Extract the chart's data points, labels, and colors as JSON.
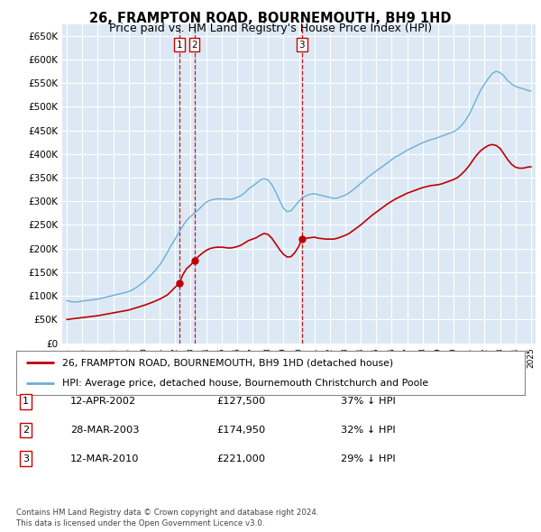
{
  "title": "26, FRAMPTON ROAD, BOURNEMOUTH, BH9 1HD",
  "subtitle": "Price paid vs. HM Land Registry's House Price Index (HPI)",
  "ytick_values": [
    0,
    50000,
    100000,
    150000,
    200000,
    250000,
    300000,
    350000,
    400000,
    450000,
    500000,
    550000,
    600000,
    650000
  ],
  "ylim": [
    0,
    675000
  ],
  "xlim_start": 1994.7,
  "xlim_end": 2025.3,
  "background_color": "#dce9f5",
  "grid_color": "#ffffff",
  "hpi_line_color": "#6baed6",
  "price_line_color": "#c00000",
  "sale_marker_color": "#c00000",
  "transactions": [
    {
      "date_num": 2002.28,
      "price": 127500,
      "label": "1"
    },
    {
      "date_num": 2003.24,
      "price": 174950,
      "label": "2"
    },
    {
      "date_num": 2010.19,
      "price": 221000,
      "label": "3"
    }
  ],
  "transaction_table": [
    {
      "num": "1",
      "date": "12-APR-2002",
      "price": "£127,500",
      "change": "37% ↓ HPI"
    },
    {
      "num": "2",
      "date": "28-MAR-2003",
      "price": "£174,950",
      "change": "32% ↓ HPI"
    },
    {
      "num": "3",
      "date": "12-MAR-2010",
      "price": "£221,000",
      "change": "29% ↓ HPI"
    }
  ],
  "legend_entries": [
    "26, FRAMPTON ROAD, BOURNEMOUTH, BH9 1HD (detached house)",
    "HPI: Average price, detached house, Bournemouth Christchurch and Poole"
  ],
  "footer": "Contains HM Land Registry data © Crown copyright and database right 2024.\nThis data is licensed under the Open Government Licence v3.0.",
  "title_fontsize": 10.5,
  "subtitle_fontsize": 9,
  "hpi_data": [
    [
      1995.0,
      90000
    ],
    [
      1995.25,
      88000
    ],
    [
      1995.5,
      87000
    ],
    [
      1995.75,
      87500
    ],
    [
      1996.0,
      89000
    ],
    [
      1996.25,
      90000
    ],
    [
      1996.5,
      91000
    ],
    [
      1996.75,
      92000
    ],
    [
      1997.0,
      93000
    ],
    [
      1997.25,
      95000
    ],
    [
      1997.5,
      97000
    ],
    [
      1997.75,
      99000
    ],
    [
      1998.0,
      101000
    ],
    [
      1998.25,
      103000
    ],
    [
      1998.5,
      105000
    ],
    [
      1998.75,
      107000
    ],
    [
      1999.0,
      109000
    ],
    [
      1999.25,
      113000
    ],
    [
      1999.5,
      118000
    ],
    [
      1999.75,
      124000
    ],
    [
      2000.0,
      130000
    ],
    [
      2000.25,
      138000
    ],
    [
      2000.5,
      146000
    ],
    [
      2000.75,
      155000
    ],
    [
      2001.0,
      165000
    ],
    [
      2001.25,
      178000
    ],
    [
      2001.5,
      192000
    ],
    [
      2001.75,
      207000
    ],
    [
      2002.0,
      220000
    ],
    [
      2002.25,
      235000
    ],
    [
      2002.5,
      248000
    ],
    [
      2002.75,
      260000
    ],
    [
      2003.0,
      268000
    ],
    [
      2003.25,
      275000
    ],
    [
      2003.5,
      282000
    ],
    [
      2003.75,
      290000
    ],
    [
      2004.0,
      298000
    ],
    [
      2004.25,
      302000
    ],
    [
      2004.5,
      304000
    ],
    [
      2004.75,
      305000
    ],
    [
      2005.0,
      305000
    ],
    [
      2005.25,
      305000
    ],
    [
      2005.5,
      304000
    ],
    [
      2005.75,
      305000
    ],
    [
      2006.0,
      308000
    ],
    [
      2006.25,
      312000
    ],
    [
      2006.5,
      318000
    ],
    [
      2006.75,
      326000
    ],
    [
      2007.0,
      332000
    ],
    [
      2007.25,
      338000
    ],
    [
      2007.5,
      345000
    ],
    [
      2007.75,
      348000
    ],
    [
      2008.0,
      345000
    ],
    [
      2008.25,
      335000
    ],
    [
      2008.5,
      320000
    ],
    [
      2008.75,
      302000
    ],
    [
      2009.0,
      285000
    ],
    [
      2009.25,
      278000
    ],
    [
      2009.5,
      280000
    ],
    [
      2009.75,
      290000
    ],
    [
      2010.0,
      300000
    ],
    [
      2010.25,
      308000
    ],
    [
      2010.5,
      312000
    ],
    [
      2010.75,
      315000
    ],
    [
      2011.0,
      316000
    ],
    [
      2011.25,
      314000
    ],
    [
      2011.5,
      312000
    ],
    [
      2011.75,
      310000
    ],
    [
      2012.0,
      308000
    ],
    [
      2012.25,
      306000
    ],
    [
      2012.5,
      307000
    ],
    [
      2012.75,
      310000
    ],
    [
      2013.0,
      313000
    ],
    [
      2013.25,
      318000
    ],
    [
      2013.5,
      324000
    ],
    [
      2013.75,
      331000
    ],
    [
      2014.0,
      338000
    ],
    [
      2014.25,
      345000
    ],
    [
      2014.5,
      352000
    ],
    [
      2014.75,
      358000
    ],
    [
      2015.0,
      364000
    ],
    [
      2015.25,
      370000
    ],
    [
      2015.5,
      376000
    ],
    [
      2015.75,
      382000
    ],
    [
      2016.0,
      388000
    ],
    [
      2016.25,
      394000
    ],
    [
      2016.5,
      398000
    ],
    [
      2016.75,
      403000
    ],
    [
      2017.0,
      408000
    ],
    [
      2017.25,
      412000
    ],
    [
      2017.5,
      416000
    ],
    [
      2017.75,
      420000
    ],
    [
      2018.0,
      424000
    ],
    [
      2018.25,
      427000
    ],
    [
      2018.5,
      430000
    ],
    [
      2018.75,
      432000
    ],
    [
      2019.0,
      435000
    ],
    [
      2019.25,
      438000
    ],
    [
      2019.5,
      441000
    ],
    [
      2019.75,
      444000
    ],
    [
      2020.0,
      447000
    ],
    [
      2020.25,
      452000
    ],
    [
      2020.5,
      460000
    ],
    [
      2020.75,
      470000
    ],
    [
      2021.0,
      483000
    ],
    [
      2021.25,
      500000
    ],
    [
      2021.5,
      518000
    ],
    [
      2021.75,
      535000
    ],
    [
      2022.0,
      548000
    ],
    [
      2022.25,
      560000
    ],
    [
      2022.5,
      570000
    ],
    [
      2022.75,
      575000
    ],
    [
      2023.0,
      572000
    ],
    [
      2023.25,
      565000
    ],
    [
      2023.5,
      555000
    ],
    [
      2023.75,
      548000
    ],
    [
      2024.0,
      543000
    ],
    [
      2024.25,
      540000
    ],
    [
      2024.5,
      538000
    ],
    [
      2024.75,
      535000
    ],
    [
      2025.0,
      533000
    ]
  ],
  "pp_data": [
    [
      1995.0,
      50000
    ],
    [
      1995.5,
      52000
    ],
    [
      1996.0,
      54000
    ],
    [
      1996.5,
      56000
    ],
    [
      1997.0,
      58000
    ],
    [
      1997.5,
      61000
    ],
    [
      1998.0,
      64000
    ],
    [
      1998.5,
      67000
    ],
    [
      1999.0,
      70000
    ],
    [
      1999.5,
      75000
    ],
    [
      2000.0,
      80000
    ],
    [
      2000.5,
      86000
    ],
    [
      2001.0,
      93000
    ],
    [
      2001.5,
      102000
    ],
    [
      2001.75,
      110000
    ],
    [
      2002.28,
      127500
    ],
    [
      2002.5,
      145000
    ],
    [
      2002.75,
      158000
    ],
    [
      2003.0,
      165000
    ],
    [
      2003.24,
      174950
    ],
    [
      2003.5,
      183000
    ],
    [
      2003.75,
      190000
    ],
    [
      2004.0,
      196000
    ],
    [
      2004.25,
      200000
    ],
    [
      2004.5,
      202000
    ],
    [
      2004.75,
      203000
    ],
    [
      2005.0,
      203000
    ],
    [
      2005.25,
      202000
    ],
    [
      2005.5,
      201000
    ],
    [
      2005.75,
      202000
    ],
    [
      2006.0,
      204000
    ],
    [
      2006.25,
      207000
    ],
    [
      2006.5,
      212000
    ],
    [
      2006.75,
      217000
    ],
    [
      2007.0,
      220000
    ],
    [
      2007.25,
      223000
    ],
    [
      2007.5,
      228000
    ],
    [
      2007.75,
      232000
    ],
    [
      2008.0,
      230000
    ],
    [
      2008.25,
      222000
    ],
    [
      2008.5,
      210000
    ],
    [
      2008.75,
      198000
    ],
    [
      2009.0,
      188000
    ],
    [
      2009.25,
      182000
    ],
    [
      2009.5,
      183000
    ],
    [
      2009.75,
      192000
    ],
    [
      2010.0,
      205000
    ],
    [
      2010.19,
      221000
    ],
    [
      2010.5,
      222000
    ],
    [
      2010.75,
      223000
    ],
    [
      2011.0,
      224000
    ],
    [
      2011.25,
      222000
    ],
    [
      2011.5,
      221000
    ],
    [
      2011.75,
      220000
    ],
    [
      2012.0,
      220000
    ],
    [
      2012.25,
      220000
    ],
    [
      2012.5,
      222000
    ],
    [
      2012.75,
      225000
    ],
    [
      2013.0,
      228000
    ],
    [
      2013.25,
      232000
    ],
    [
      2013.5,
      238000
    ],
    [
      2013.75,
      244000
    ],
    [
      2014.0,
      250000
    ],
    [
      2014.25,
      257000
    ],
    [
      2014.5,
      264000
    ],
    [
      2014.75,
      271000
    ],
    [
      2015.0,
      277000
    ],
    [
      2015.25,
      283000
    ],
    [
      2015.5,
      289000
    ],
    [
      2015.75,
      295000
    ],
    [
      2016.0,
      300000
    ],
    [
      2016.25,
      305000
    ],
    [
      2016.5,
      309000
    ],
    [
      2016.75,
      313000
    ],
    [
      2017.0,
      317000
    ],
    [
      2017.25,
      320000
    ],
    [
      2017.5,
      323000
    ],
    [
      2017.75,
      326000
    ],
    [
      2018.0,
      329000
    ],
    [
      2018.25,
      331000
    ],
    [
      2018.5,
      333000
    ],
    [
      2018.75,
      334000
    ],
    [
      2019.0,
      335000
    ],
    [
      2019.25,
      337000
    ],
    [
      2019.5,
      340000
    ],
    [
      2019.75,
      343000
    ],
    [
      2020.0,
      346000
    ],
    [
      2020.25,
      350000
    ],
    [
      2020.5,
      357000
    ],
    [
      2020.75,
      365000
    ],
    [
      2021.0,
      375000
    ],
    [
      2021.25,
      387000
    ],
    [
      2021.5,
      398000
    ],
    [
      2021.75,
      407000
    ],
    [
      2022.0,
      413000
    ],
    [
      2022.25,
      418000
    ],
    [
      2022.5,
      420000
    ],
    [
      2022.75,
      418000
    ],
    [
      2023.0,
      412000
    ],
    [
      2023.25,
      400000
    ],
    [
      2023.5,
      388000
    ],
    [
      2023.75,
      378000
    ],
    [
      2024.0,
      372000
    ],
    [
      2024.25,
      370000
    ],
    [
      2024.5,
      370000
    ],
    [
      2024.75,
      372000
    ],
    [
      2025.0,
      373000
    ]
  ]
}
